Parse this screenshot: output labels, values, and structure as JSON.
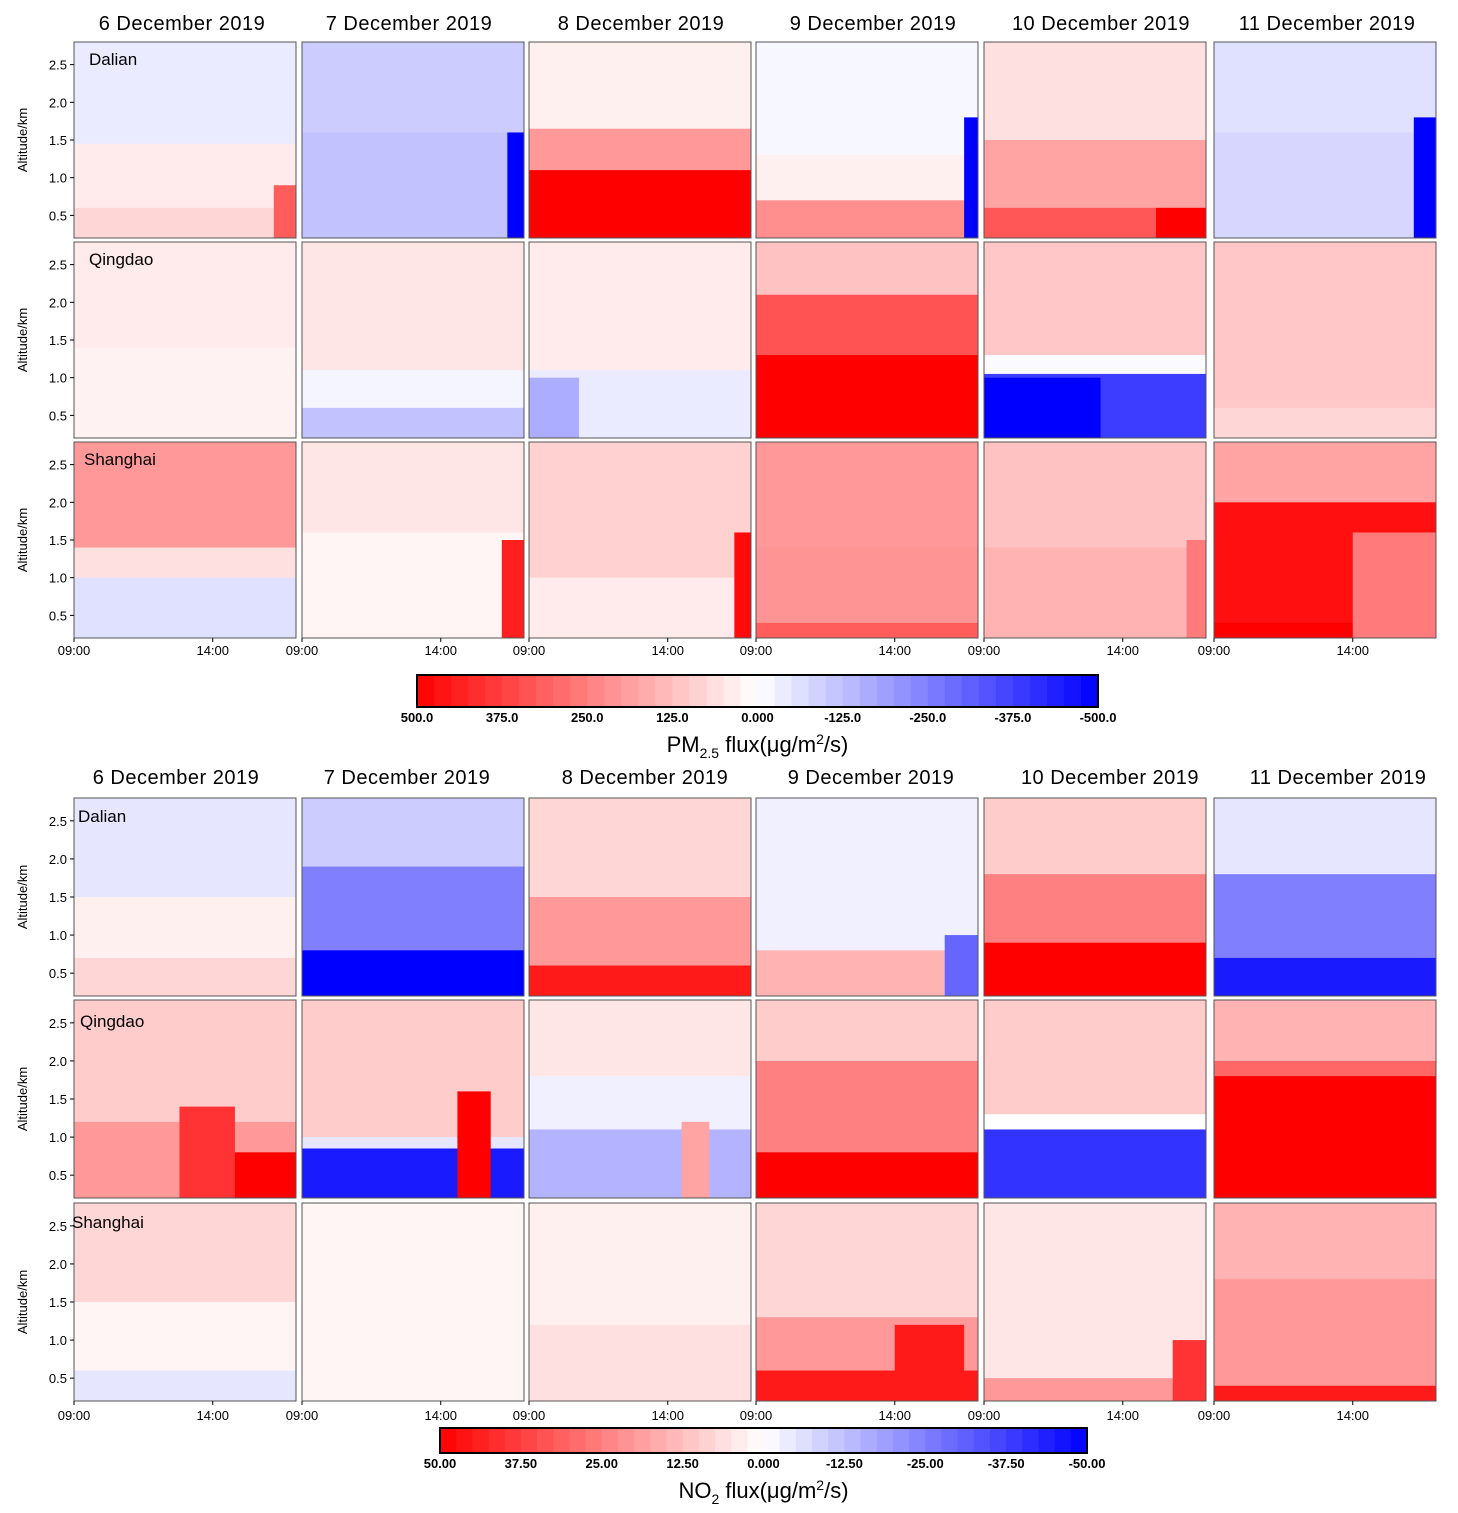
{
  "colors": {
    "red": "#ff0000",
    "white": "#ffffff",
    "blue": "#0000ff",
    "frame": "#555555",
    "text": "#000000"
  },
  "chart_data": [
    {
      "type": "heatmap",
      "title": "PM2.5 flux",
      "dates": [
        "6 December 2019",
        "7 December 2019",
        "8 December 2019",
        "9 December 2019",
        "10 December 2019",
        "11 December 2019"
      ],
      "cities": [
        "Dalian",
        "Qingdao",
        "Shanghai"
      ],
      "ylabel": "Altitude/km",
      "y_ticks": [
        "2.5",
        "2.0",
        "1.5",
        "1.0",
        "0.5"
      ],
      "y_tick_values": [
        2.5,
        2.0,
        1.5,
        1.0,
        0.5
      ],
      "ylim": [
        0.2,
        2.8
      ],
      "x_ticks": [
        "09:00",
        "14:00"
      ],
      "x_tick_values": [
        9,
        14
      ],
      "xlim": [
        9,
        17
      ],
      "colorbar": {
        "label_main": "PM",
        "label_sub": "2.5",
        "label_tail": " flux(μg/m",
        "label_sup": "2",
        "label_end": "/s)",
        "ticks": [
          "500.0",
          "375.0",
          "250.0",
          "125.0",
          "0.000",
          "-125.0",
          "-250.0",
          "-375.0",
          "-500.0"
        ],
        "range": [
          500,
          -500
        ]
      },
      "panels": [
        [
          {
            "layers": [
              {
                "h": 2.8,
                "v": -40
              },
              {
                "h": 1.45,
                "v": 40
              },
              {
                "h": 0.6,
                "v": 80
              }
            ],
            "spots": [
              {
                "x0": 16.2,
                "x1": 17,
                "h": 0.9,
                "v": 320
              }
            ]
          },
          {
            "layers": [
              {
                "h": 2.8,
                "v": -100
              },
              {
                "h": 1.6,
                "v": -120
              }
            ],
            "spots": [
              {
                "x0": 16.4,
                "x1": 17,
                "h": 1.6,
                "v": -500
              }
            ]
          },
          {
            "layers": [
              {
                "h": 2.8,
                "v": 30
              },
              {
                "h": 1.65,
                "v": 200
              },
              {
                "h": 1.1,
                "v": 500
              }
            ],
            "spots": []
          },
          {
            "layers": [
              {
                "h": 2.8,
                "v": -15
              },
              {
                "h": 1.3,
                "v": 30
              },
              {
                "h": 0.7,
                "v": 220
              }
            ],
            "spots": [
              {
                "x0": 16.5,
                "x1": 17,
                "h": 1.8,
                "v": -500
              }
            ]
          },
          {
            "layers": [
              {
                "h": 2.8,
                "v": 60
              },
              {
                "h": 1.5,
                "v": 180
              },
              {
                "h": 0.6,
                "v": 330
              }
            ],
            "spots": [
              {
                "x0": 15.2,
                "x1": 17,
                "h": 0.6,
                "v": 500
              }
            ]
          },
          {
            "layers": [
              {
                "h": 2.8,
                "v": -60
              },
              {
                "h": 1.6,
                "v": -80
              }
            ],
            "spots": [
              {
                "x0": 16.2,
                "x1": 17,
                "h": 1.8,
                "v": -500
              }
            ]
          }
        ],
        [
          {
            "layers": [
              {
                "h": 2.8,
                "v": 40
              },
              {
                "h": 1.4,
                "v": 25
              }
            ],
            "spots": []
          },
          {
            "layers": [
              {
                "h": 2.8,
                "v": 50
              },
              {
                "h": 1.1,
                "v": -20
              },
              {
                "h": 0.6,
                "v": -120
              }
            ],
            "spots": []
          },
          {
            "layers": [
              {
                "h": 2.8,
                "v": 40
              },
              {
                "h": 1.1,
                "v": -40
              }
            ],
            "spots": [
              {
                "x0": 9,
                "x1": 10.8,
                "h": 1.0,
                "v": -160
              }
            ]
          },
          {
            "layers": [
              {
                "h": 2.8,
                "v": 120
              },
              {
                "h": 2.1,
                "v": 340
              },
              {
                "h": 1.3,
                "v": 500
              }
            ],
            "spots": []
          },
          {
            "layers": [
              {
                "h": 2.8,
                "v": 110
              },
              {
                "h": 1.3,
                "v": -10
              },
              {
                "h": 1.05,
                "v": -380
              }
            ],
            "spots": [
              {
                "x0": 9,
                "x1": 13.2,
                "h": 1.0,
                "v": -500
              }
            ]
          },
          {
            "layers": [
              {
                "h": 2.8,
                "v": 110
              },
              {
                "h": 0.6,
                "v": 80
              }
            ],
            "spots": []
          }
        ],
        [
          {
            "layers": [
              {
                "h": 2.8,
                "v": 200
              },
              {
                "h": 1.4,
                "v": 60
              },
              {
                "h": 1.0,
                "v": -60
              }
            ],
            "spots": []
          },
          {
            "layers": [
              {
                "h": 2.8,
                "v": 50
              },
              {
                "h": 1.6,
                "v": 20
              }
            ],
            "spots": [
              {
                "x0": 16.2,
                "x1": 17,
                "h": 1.5,
                "v": 440
              }
            ]
          },
          {
            "layers": [
              {
                "h": 2.8,
                "v": 90
              },
              {
                "h": 1.0,
                "v": 40
              }
            ],
            "spots": [
              {
                "x0": 16.4,
                "x1": 17,
                "h": 1.6,
                "v": 480
              }
            ]
          },
          {
            "layers": [
              {
                "h": 2.8,
                "v": 200
              },
              {
                "h": 1.4,
                "v": 210
              },
              {
                "h": 0.4,
                "v": 320
              }
            ],
            "spots": []
          },
          {
            "layers": [
              {
                "h": 2.8,
                "v": 120
              },
              {
                "h": 1.4,
                "v": 150
              }
            ],
            "spots": [
              {
                "x0": 16.3,
                "x1": 17,
                "h": 1.5,
                "v": 260
              }
            ]
          },
          {
            "layers": [
              {
                "h": 2.8,
                "v": 180
              },
              {
                "h": 2.0,
                "v": 470
              },
              {
                "h": 0.4,
                "v": 500
              }
            ],
            "spots": [
              {
                "x0": 14,
                "x1": 17,
                "h": 1.6,
                "v": 260
              }
            ]
          }
        ]
      ]
    },
    {
      "type": "heatmap",
      "title": "NO2 flux",
      "dates": [
        "6 December 2019",
        "7 December 2019",
        "8 December 2019",
        "9 December 2019",
        "10 December 2019",
        "11 December 2019"
      ],
      "cities": [
        "Dalian",
        "Qingdao",
        "Shanghai"
      ],
      "ylabel": "Altitude/km",
      "y_ticks": [
        "2.5",
        "2.0",
        "1.5",
        "1.0",
        "0.5"
      ],
      "y_tick_values": [
        2.5,
        2.0,
        1.5,
        1.0,
        0.5
      ],
      "ylim": [
        0.2,
        2.8
      ],
      "x_ticks": [
        "09:00",
        "14:00"
      ],
      "x_tick_values": [
        9,
        14
      ],
      "xlim": [
        9,
        17
      ],
      "colorbar": {
        "label_main": "NO",
        "label_sub": "2",
        "label_tail": " flux(μg/m",
        "label_sup": "2",
        "label_end": "/s)",
        "ticks": [
          "50.00",
          "37.50",
          "25.00",
          "12.50",
          "0.000",
          "-12.50",
          "-25.00",
          "-37.50",
          "-50.00"
        ],
        "range": [
          50,
          -50
        ]
      },
      "panels": [
        [
          {
            "layers": [
              {
                "h": 2.8,
                "v": -5
              },
              {
                "h": 1.5,
                "v": 3
              },
              {
                "h": 0.7,
                "v": 8
              }
            ],
            "spots": []
          },
          {
            "layers": [
              {
                "h": 2.8,
                "v": -10
              },
              {
                "h": 1.9,
                "v": -25
              },
              {
                "h": 0.8,
                "v": -50
              }
            ],
            "spots": []
          },
          {
            "layers": [
              {
                "h": 2.8,
                "v": 8
              },
              {
                "h": 1.5,
                "v": 20
              },
              {
                "h": 0.6,
                "v": 45
              }
            ],
            "spots": []
          },
          {
            "layers": [
              {
                "h": 2.8,
                "v": -3
              },
              {
                "h": 0.8,
                "v": 15
              }
            ],
            "spots": [
              {
                "x0": 15.8,
                "x1": 17,
                "h": 1.0,
                "v": -30
              }
            ]
          },
          {
            "layers": [
              {
                "h": 2.8,
                "v": 10
              },
              {
                "h": 1.8,
                "v": 25
              },
              {
                "h": 0.9,
                "v": 50
              }
            ],
            "spots": []
          },
          {
            "layers": [
              {
                "h": 2.8,
                "v": -5
              },
              {
                "h": 1.8,
                "v": -25
              },
              {
                "h": 0.7,
                "v": -45
              }
            ],
            "spots": []
          }
        ],
        [
          {
            "layers": [
              {
                "h": 2.8,
                "v": 10
              },
              {
                "h": 1.2,
                "v": 20
              }
            ],
            "spots": [
              {
                "x0": 13.5,
                "x1": 17,
                "h": 0.8,
                "v": 50
              },
              {
                "x0": 12.8,
                "x1": 14.8,
                "h": 1.4,
                "v": 40
              }
            ]
          },
          {
            "layers": [
              {
                "h": 2.8,
                "v": 10
              },
              {
                "h": 1.0,
                "v": -5
              },
              {
                "h": 0.85,
                "v": -45
              }
            ],
            "spots": [
              {
                "x0": 14.6,
                "x1": 15.8,
                "h": 1.6,
                "v": 50
              }
            ]
          },
          {
            "layers": [
              {
                "h": 2.8,
                "v": 5
              },
              {
                "h": 1.8,
                "v": -3
              },
              {
                "h": 1.1,
                "v": -15
              }
            ],
            "spots": [
              {
                "x0": 14.5,
                "x1": 15.5,
                "h": 1.2,
                "v": 18
              }
            ]
          },
          {
            "layers": [
              {
                "h": 2.8,
                "v": 10
              },
              {
                "h": 2.0,
                "v": 25
              },
              {
                "h": 0.8,
                "v": 50
              }
            ],
            "spots": []
          },
          {
            "layers": [
              {
                "h": 2.8,
                "v": 10
              },
              {
                "h": 1.3,
                "v": 0
              },
              {
                "h": 1.1,
                "v": -40
              }
            ],
            "spots": []
          },
          {
            "layers": [
              {
                "h": 2.8,
                "v": 15
              },
              {
                "h": 2.0,
                "v": 30
              },
              {
                "h": 1.8,
                "v": 50
              }
            ],
            "spots": []
          }
        ],
        [
          {
            "layers": [
              {
                "h": 2.8,
                "v": 8
              },
              {
                "h": 1.5,
                "v": 2
              },
              {
                "h": 0.6,
                "v": -5
              }
            ],
            "spots": []
          },
          {
            "layers": [
              {
                "h": 2.8,
                "v": 2
              }
            ],
            "spots": []
          },
          {
            "layers": [
              {
                "h": 2.8,
                "v": 3
              },
              {
                "h": 1.2,
                "v": 6
              }
            ],
            "spots": []
          },
          {
            "layers": [
              {
                "h": 2.8,
                "v": 8
              },
              {
                "h": 1.3,
                "v": 20
              },
              {
                "h": 0.6,
                "v": 45
              }
            ],
            "spots": [
              {
                "x0": 14,
                "x1": 16.5,
                "h": 1.2,
                "v": 45
              }
            ]
          },
          {
            "layers": [
              {
                "h": 2.8,
                "v": 5
              },
              {
                "h": 0.5,
                "v": 20
              }
            ],
            "spots": [
              {
                "x0": 15.8,
                "x1": 17,
                "h": 1.0,
                "v": 40
              }
            ]
          },
          {
            "layers": [
              {
                "h": 2.8,
                "v": 15
              },
              {
                "h": 1.8,
                "v": 20
              },
              {
                "h": 0.4,
                "v": 45
              }
            ],
            "spots": []
          }
        ]
      ]
    }
  ]
}
